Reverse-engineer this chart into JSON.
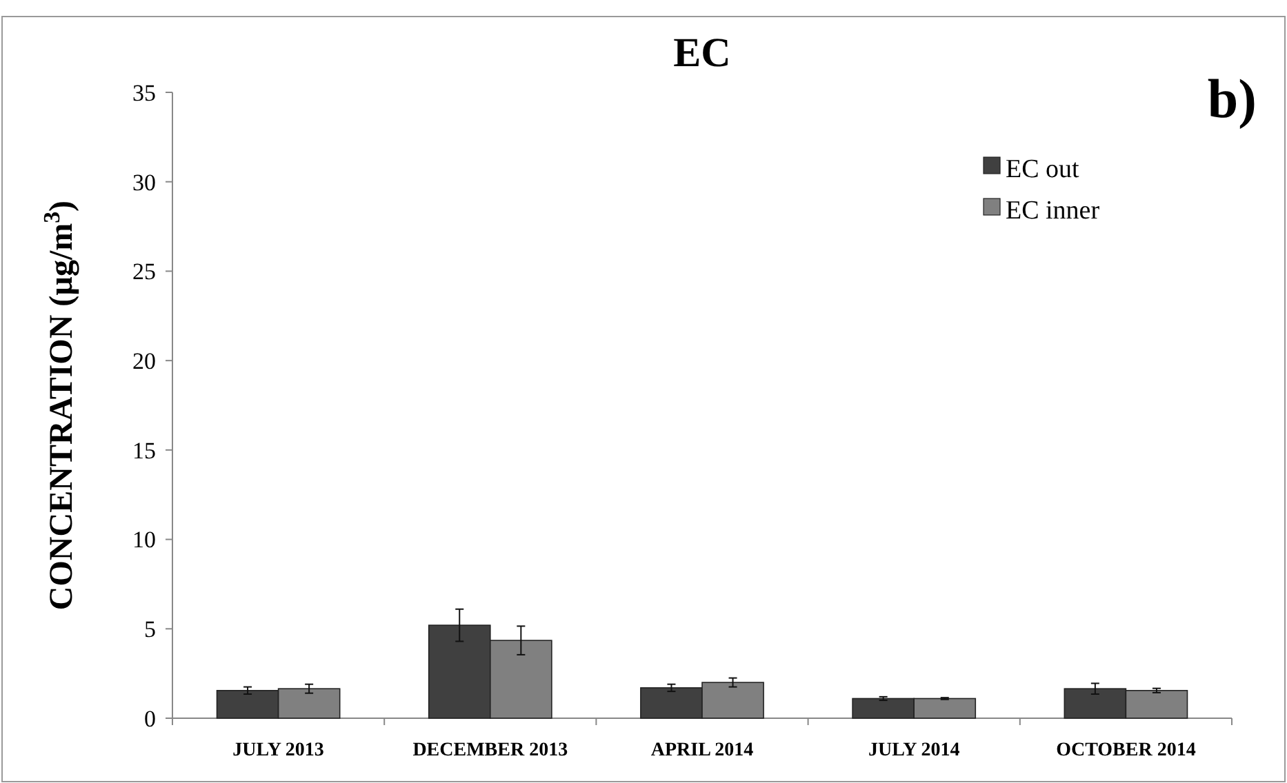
{
  "chart_data": {
    "type": "bar",
    "title": "EC",
    "ylabel": "CONCENTRATION (µg/m$^{3}$)",
    "annotations": [
      "b)"
    ],
    "categories": [
      "JULY 2013",
      "DECEMBER 2013",
      "APRIL 2014",
      "JULY 2014",
      "OCTOBER 2014"
    ],
    "series": [
      {
        "name": "EC out",
        "color": "#404040",
        "values": [
          1.55,
          5.2,
          1.7,
          1.1,
          1.65
        ],
        "errors": [
          0.2,
          0.9,
          0.2,
          0.1,
          0.3
        ]
      },
      {
        "name": "EC inner",
        "color": "#808080",
        "values": [
          1.65,
          4.35,
          2.0,
          1.1,
          1.55
        ],
        "errors": [
          0.25,
          0.8,
          0.25,
          0.05,
          0.12
        ]
      }
    ],
    "ylim": [
      0,
      35
    ],
    "yticks": [
      0,
      5,
      10,
      15,
      20,
      25,
      30,
      35
    ],
    "legend": "top right"
  }
}
